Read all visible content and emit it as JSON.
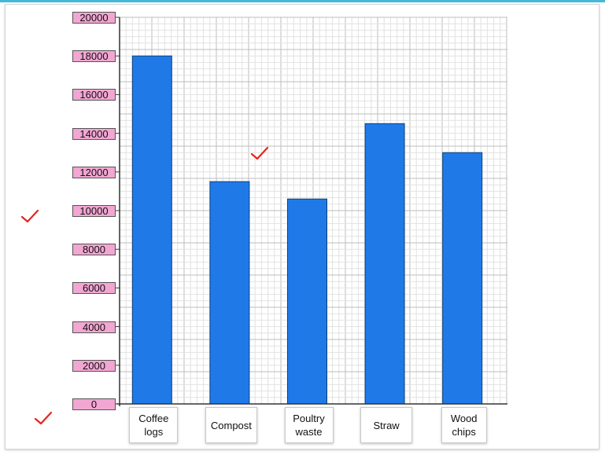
{
  "theme": {
    "accent_line": "#45b8d8",
    "bar_color": "#1f7ae8",
    "tick_box_fill": "#f2a6d2",
    "check_color": "#e8231c"
  },
  "marks": [
    "check-mark",
    "check-mark",
    "check-mark"
  ],
  "chart_data": {
    "type": "bar",
    "title": "",
    "xlabel": "",
    "ylabel": "",
    "ylim": [
      0,
      20000
    ],
    "yticks": [
      "0",
      "2000",
      "4000",
      "6000",
      "8000",
      "10000",
      "12000",
      "14000",
      "16000",
      "18000",
      "20000"
    ],
    "categories": [
      "Coffee\nlogs",
      "Compost",
      "Poultry\nwaste",
      "Straw",
      "Wood\nchips"
    ],
    "values": [
      18000,
      11500,
      10600,
      14500,
      13000
    ],
    "grid": true,
    "legend": "none"
  }
}
